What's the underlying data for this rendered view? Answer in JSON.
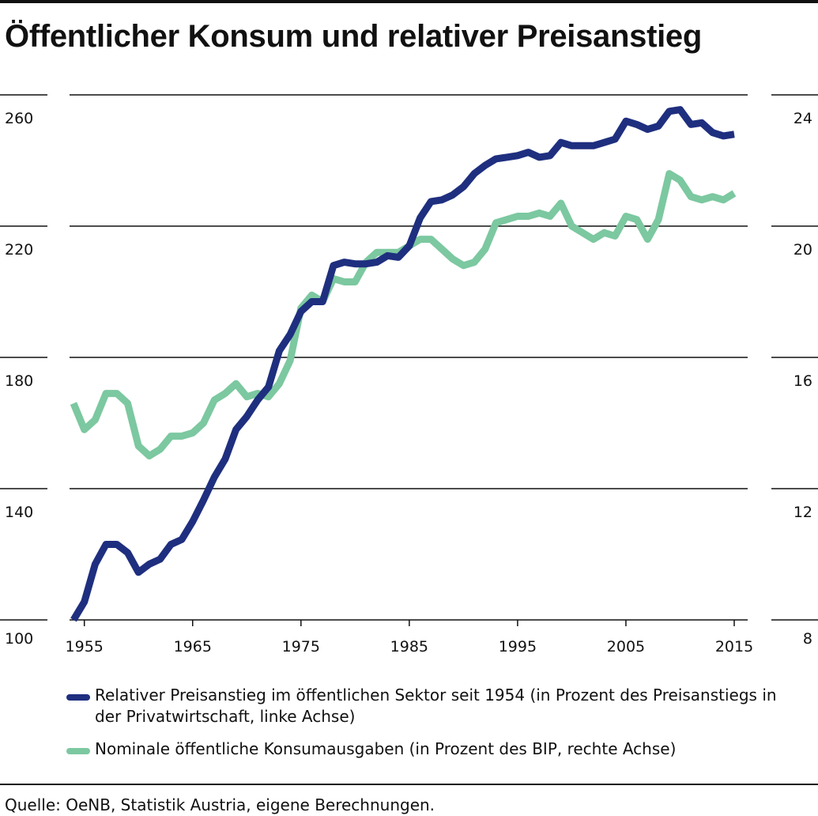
{
  "title": "Öffentlicher Konsum und relativer Preisanstieg",
  "source": "Quelle: OeNB, Statistik Austria, eigene Berechnungen.",
  "chart_data": {
    "type": "line",
    "grid": true,
    "legend_position": "bottom",
    "x_range": [
      1954,
      2015
    ],
    "x_ticks": [
      1955,
      1965,
      1975,
      1985,
      1995,
      2005,
      2015
    ],
    "y_left": {
      "range": [
        100,
        260
      ],
      "ticks": [
        100,
        140,
        180,
        220,
        260
      ]
    },
    "y_right": {
      "range": [
        8,
        24
      ],
      "ticks": [
        8,
        12,
        16,
        20,
        24
      ]
    },
    "series": [
      {
        "name": "Relativer Preisanstieg im öffentlichen Sektor seit 1954 (in Prozent des Preisanstiegs in der Privatwirtschaft, linke Achse)",
        "axis": "left",
        "color": "#1f2f7f",
        "x": [
          1954,
          1955,
          1956,
          1957,
          1958,
          1959,
          1960,
          1961,
          1962,
          1963,
          1964,
          1965,
          1966,
          1967,
          1968,
          1969,
          1970,
          1971,
          1972,
          1973,
          1974,
          1975,
          1976,
          1977,
          1978,
          1979,
          1980,
          1981,
          1982,
          1983,
          1984,
          1985,
          1986,
          1987,
          1988,
          1989,
          1990,
          1991,
          1992,
          1993,
          1994,
          1995,
          1996,
          1997,
          1998,
          1999,
          2000,
          2001,
          2002,
          2003,
          2004,
          2005,
          2006,
          2007,
          2008,
          2009,
          2010,
          2011,
          2012,
          2013,
          2014,
          2015
        ],
        "values": [
          100,
          105.5,
          117,
          123,
          123,
          120.5,
          114.5,
          117,
          118.5,
          123,
          124.5,
          130,
          136.5,
          143.5,
          149,
          158,
          162,
          167,
          171,
          182,
          187,
          194,
          197,
          197,
          208,
          209,
          208.5,
          208.5,
          209,
          211,
          210.5,
          214,
          222.5,
          227.5,
          228,
          229.5,
          232,
          236,
          238.5,
          240.5,
          241,
          241.5,
          242.5,
          241,
          241.5,
          245.5,
          244.5,
          244.5,
          244.5,
          245.5,
          246.5,
          252,
          251,
          249.5,
          250.5,
          255,
          255.5,
          251,
          251.5,
          248.5,
          247.5,
          248
        ]
      },
      {
        "name": "Nominale öffentliche Konsumausgaben (in Prozent des BIP, rechte Achse)",
        "axis": "right",
        "color": "#7cc8a0",
        "x": [
          1954,
          1955,
          1956,
          1957,
          1958,
          1959,
          1960,
          1961,
          1962,
          1963,
          1964,
          1965,
          1966,
          1967,
          1968,
          1969,
          1970,
          1971,
          1972,
          1973,
          1974,
          1975,
          1976,
          1977,
          1978,
          1979,
          1980,
          1981,
          1982,
          1983,
          1984,
          1985,
          1986,
          1987,
          1988,
          1989,
          1990,
          1991,
          1992,
          1993,
          1994,
          1995,
          1996,
          1997,
          1998,
          1999,
          2000,
          2001,
          2002,
          2003,
          2004,
          2005,
          2006,
          2007,
          2008,
          2009,
          2010,
          2011,
          2012,
          2013,
          2014,
          2015
        ],
        "values": [
          14.6,
          13.8,
          14.1,
          14.9,
          14.9,
          14.6,
          13.3,
          13.0,
          13.2,
          13.6,
          13.6,
          13.7,
          14.0,
          14.7,
          14.9,
          15.2,
          14.8,
          14.9,
          14.8,
          15.2,
          15.9,
          17.5,
          17.9,
          17.7,
          18.4,
          18.3,
          18.3,
          18.9,
          19.2,
          19.2,
          19.2,
          19.4,
          19.6,
          19.6,
          19.3,
          19.0,
          18.8,
          18.9,
          19.3,
          20.1,
          20.2,
          20.3,
          20.3,
          20.4,
          20.3,
          20.7,
          20.0,
          19.8,
          19.6,
          19.8,
          19.7,
          20.3,
          20.2,
          19.6,
          20.2,
          21.6,
          21.4,
          20.9,
          20.8,
          20.9,
          20.8,
          21.0
        ]
      }
    ]
  }
}
